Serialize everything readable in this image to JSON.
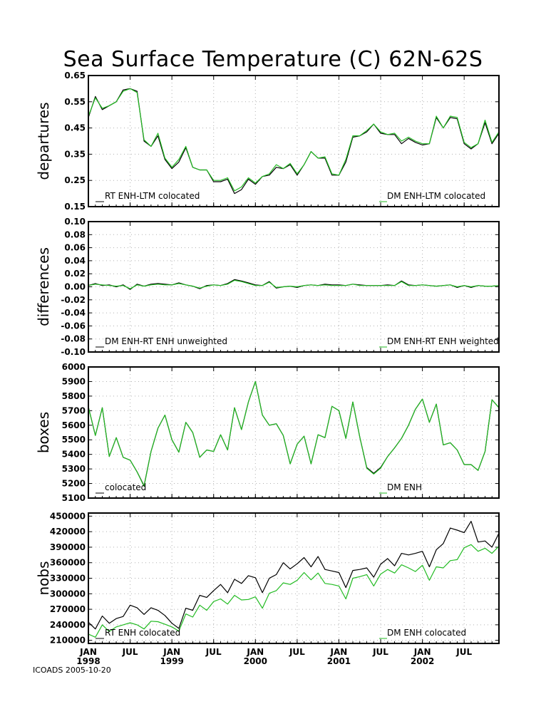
{
  "title": "Sea Surface Temperature (C) 62N-62S",
  "footer": "ICOADS 2005-10-20",
  "colors": {
    "series_a": "#000000",
    "series_b": "#22bb22",
    "grid": "#b0b0b0"
  },
  "x_axis": {
    "ticks": [
      {
        "month": 0,
        "label": "JAN",
        "year": "1998"
      },
      {
        "month": 6,
        "label": "JUL",
        "year": ""
      },
      {
        "month": 12,
        "label": "JAN",
        "year": "1999"
      },
      {
        "month": 18,
        "label": "JUL",
        "year": ""
      },
      {
        "month": 24,
        "label": "JAN",
        "year": "2000"
      },
      {
        "month": 30,
        "label": "JUL",
        "year": ""
      },
      {
        "month": 36,
        "label": "JAN",
        "year": "2001"
      },
      {
        "month": 42,
        "label": "JUL",
        "year": ""
      },
      {
        "month": 48,
        "label": "JAN",
        "year": "2002"
      },
      {
        "month": 54,
        "label": "JUL",
        "year": ""
      }
    ],
    "range": [
      0,
      59
    ]
  },
  "chart_data": [
    {
      "type": "line",
      "ylabel": "departures",
      "ylim": [
        0.15,
        0.65
      ],
      "yticks": [
        0.15,
        0.25,
        0.35,
        0.45,
        0.55,
        0.65
      ],
      "ytick_labels": [
        "0.15",
        "0.25",
        "0.35",
        "0.45",
        "0.55",
        "0.65"
      ],
      "legend_left": "RT ENH-LTM colocated",
      "legend_right": "DM ENH-LTM colocated",
      "series": [
        {
          "name": "RT ENH-LTM colocated",
          "values": [
            0.49,
            0.57,
            0.52,
            0.535,
            0.55,
            0.595,
            0.6,
            0.59,
            0.4,
            0.38,
            0.42,
            0.33,
            0.295,
            0.32,
            0.375,
            0.3,
            0.29,
            0.29,
            0.245,
            0.245,
            0.255,
            0.2,
            0.215,
            0.255,
            0.235,
            0.265,
            0.27,
            0.3,
            0.295,
            0.31,
            0.27,
            0.31,
            0.36,
            0.335,
            0.335,
            0.27,
            0.27,
            0.32,
            0.415,
            0.42,
            0.435,
            0.465,
            0.43,
            0.425,
            0.425,
            0.39,
            0.41,
            0.395,
            0.385,
            0.39,
            0.49,
            0.45,
            0.49,
            0.485,
            0.39,
            0.37,
            0.39,
            0.47,
            0.39,
            0.43
          ]
        },
        {
          "name": "DM ENH-LTM colocated",
          "values": [
            0.495,
            0.565,
            0.525,
            0.535,
            0.55,
            0.59,
            0.6,
            0.585,
            0.405,
            0.38,
            0.43,
            0.335,
            0.3,
            0.33,
            0.38,
            0.3,
            0.29,
            0.29,
            0.25,
            0.25,
            0.26,
            0.21,
            0.225,
            0.26,
            0.24,
            0.265,
            0.275,
            0.31,
            0.295,
            0.315,
            0.275,
            0.31,
            0.36,
            0.335,
            0.34,
            0.275,
            0.27,
            0.33,
            0.42,
            0.42,
            0.44,
            0.465,
            0.435,
            0.425,
            0.43,
            0.4,
            0.415,
            0.4,
            0.39,
            0.39,
            0.495,
            0.45,
            0.495,
            0.49,
            0.395,
            0.375,
            0.39,
            0.48,
            0.395,
            0.435
          ]
        }
      ]
    },
    {
      "type": "line",
      "ylabel": "differences",
      "ylim": [
        -0.1,
        0.1
      ],
      "yticks": [
        -0.1,
        -0.08,
        -0.06,
        -0.04,
        -0.02,
        0,
        0.02,
        0.04,
        0.06,
        0.08,
        0.1
      ],
      "ytick_labels": [
        "-0.10",
        "-0.08",
        "-0.06",
        "-0.04",
        "-0.02",
        "0.00",
        "0.02",
        "0.04",
        "0.06",
        "0.08",
        "0.10"
      ],
      "legend_left": "DM ENH-RT ENH unweighted",
      "legend_right": "DM ENH-RT ENH weighted",
      "series": [
        {
          "name": "DM ENH-RT ENH unweighted",
          "values": [
            0.002,
            0.005,
            0.002,
            0.003,
            0.0,
            0.003,
            -0.004,
            0.004,
            0.001,
            0.004,
            0.005,
            0.004,
            0.003,
            0.006,
            0.003,
            0.001,
            -0.003,
            0.002,
            0.003,
            0.002,
            0.005,
            0.011,
            0.009,
            0.006,
            0.003,
            0.002,
            0.008,
            -0.002,
            0.0,
            0.001,
            -0.001,
            0.002,
            0.003,
            0.002,
            0.004,
            0.003,
            0.003,
            0.002,
            0.004,
            0.003,
            0.002,
            0.002,
            0.002,
            0.003,
            0.002,
            0.009,
            0.003,
            0.002,
            0.003,
            0.002,
            0.001,
            0.002,
            0.003,
            -0.001,
            0.002,
            -0.001,
            0.002,
            0.001,
            0.001,
            0.002
          ]
        },
        {
          "name": "DM ENH-RT ENH weighted",
          "values": [
            0.002,
            0.004,
            0.003,
            0.002,
            0.001,
            0.002,
            -0.003,
            0.003,
            0.001,
            0.003,
            0.004,
            0.003,
            0.003,
            0.005,
            0.003,
            0.001,
            -0.002,
            0.001,
            0.003,
            0.002,
            0.004,
            0.01,
            0.008,
            0.005,
            0.002,
            0.002,
            0.007,
            -0.001,
            0.0,
            0.001,
            0.0,
            0.002,
            0.003,
            0.002,
            0.003,
            0.002,
            0.002,
            0.002,
            0.004,
            0.002,
            0.002,
            0.002,
            0.002,
            0.002,
            0.002,
            0.008,
            0.002,
            0.002,
            0.003,
            0.002,
            0.001,
            0.002,
            0.003,
            0.0,
            0.002,
            0.0,
            0.002,
            0.001,
            0.001,
            0.002
          ]
        }
      ]
    },
    {
      "type": "line",
      "ylabel": "boxes",
      "ylim": [
        5100,
        6000
      ],
      "yticks": [
        5100,
        5200,
        5300,
        5400,
        5500,
        5600,
        5700,
        5800,
        5900,
        6000
      ],
      "ytick_labels": [
        "5100",
        "5200",
        "5300",
        "5400",
        "5500",
        "5600",
        "5700",
        "5800",
        "5900",
        "6000"
      ],
      "legend_left": "colocated",
      "legend_right": "DM ENH",
      "series": [
        {
          "name": "colocated",
          "values": [
            5725,
            5530,
            5720,
            5385,
            5515,
            5380,
            5360,
            5280,
            5185,
            5420,
            5580,
            5670,
            5500,
            5415,
            5620,
            5550,
            5380,
            5430,
            5420,
            5535,
            5430,
            5720,
            5570,
            5760,
            5900,
            5670,
            5600,
            5610,
            5530,
            5335,
            5470,
            5525,
            5335,
            5535,
            5515,
            5730,
            5700,
            5510,
            5760,
            5520,
            5310,
            5270,
            5310,
            5385,
            5445,
            5510,
            5600,
            5710,
            5780,
            5620,
            5745,
            5465,
            5480,
            5430,
            5330,
            5330,
            5290,
            5420,
            5775,
            5720
          ]
        },
        {
          "name": "DM ENH",
          "values": [
            5725,
            5530,
            5720,
            5385,
            5515,
            5380,
            5360,
            5280,
            5180,
            5420,
            5580,
            5670,
            5500,
            5415,
            5620,
            5550,
            5380,
            5430,
            5420,
            5535,
            5430,
            5720,
            5570,
            5760,
            5900,
            5670,
            5600,
            5610,
            5530,
            5335,
            5470,
            5525,
            5335,
            5535,
            5515,
            5730,
            5700,
            5510,
            5760,
            5520,
            5305,
            5265,
            5305,
            5385,
            5445,
            5510,
            5600,
            5710,
            5780,
            5620,
            5745,
            5465,
            5480,
            5430,
            5330,
            5330,
            5290,
            5420,
            5775,
            5720
          ]
        }
      ]
    },
    {
      "type": "line",
      "ylabel": "nobs",
      "ylim": [
        204000,
        456000
      ],
      "yticks": [
        210000,
        240000,
        270000,
        300000,
        330000,
        360000,
        390000,
        420000,
        450000
      ],
      "ytick_labels": [
        "210000",
        "240000",
        "270000",
        "300000",
        "330000",
        "360000",
        "390000",
        "420000",
        "450000"
      ],
      "legend_left": "RT ENH colocated",
      "legend_right": "DM ENH colocated",
      "series": [
        {
          "name": "RT ENH colocated",
          "values": [
            245000,
            232000,
            257000,
            243000,
            252000,
            256000,
            278000,
            273000,
            260000,
            273000,
            268000,
            258000,
            243000,
            233000,
            272000,
            268000,
            297000,
            293000,
            306000,
            318000,
            302000,
            328000,
            320000,
            335000,
            331000,
            302000,
            330000,
            337000,
            360000,
            348000,
            358000,
            370000,
            352000,
            372000,
            347000,
            344000,
            341000,
            312000,
            345000,
            347000,
            350000,
            332000,
            357000,
            368000,
            354000,
            378000,
            375000,
            378000,
            382000,
            352000,
            385000,
            397000,
            427000,
            423000,
            418000,
            440000,
            400000,
            402000,
            390000,
            417000
          ]
        },
        {
          "name": "DM ENH colocated",
          "values": [
            222000,
            216000,
            240000,
            227000,
            236000,
            240000,
            244000,
            240000,
            232000,
            247000,
            246000,
            241000,
            236000,
            228000,
            261000,
            255000,
            278000,
            268000,
            285000,
            290000,
            280000,
            297000,
            288000,
            289000,
            294000,
            272000,
            301000,
            306000,
            321000,
            318000,
            326000,
            341000,
            327000,
            340000,
            320000,
            318000,
            315000,
            290000,
            330000,
            333000,
            337000,
            315000,
            338000,
            347000,
            340000,
            356000,
            350000,
            343000,
            355000,
            326000,
            352000,
            350000,
            364000,
            366000,
            389000,
            395000,
            382000,
            388000,
            378000,
            392000
          ]
        }
      ]
    }
  ]
}
